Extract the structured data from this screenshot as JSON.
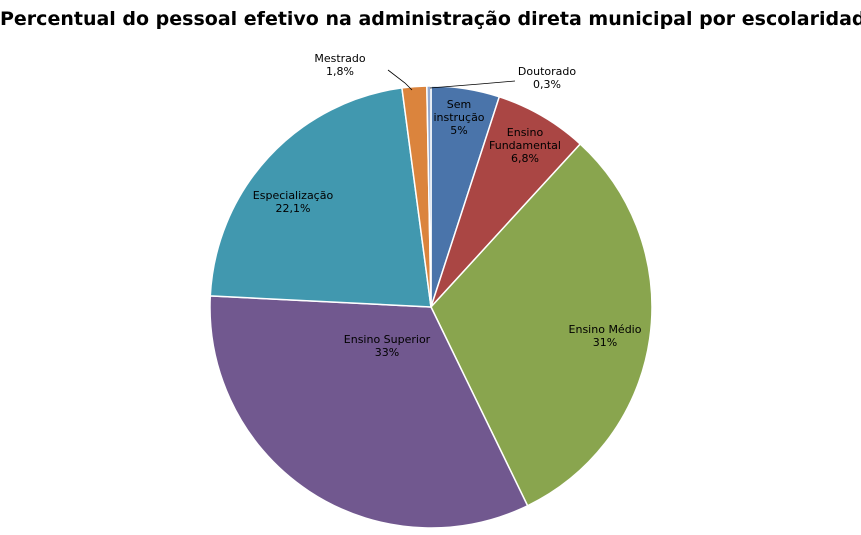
{
  "chart_data": {
    "type": "pie",
    "title": "Percentual do pessoal efetivo na administração direta municipal por escolaridade",
    "slices": [
      {
        "label": "Sem instrução",
        "value": 5,
        "display": "5%",
        "color": "#4A74AA"
      },
      {
        "label": "Ensino Fundamental",
        "value": 6.8,
        "display": "6,8%",
        "color": "#AA4644"
      },
      {
        "label": "Ensino Médio",
        "value": 31,
        "display": "31%",
        "color": "#89A54E"
      },
      {
        "label": "Ensino Superior",
        "value": 33,
        "display": "33%",
        "color": "#71588F"
      },
      {
        "label": "Especialização",
        "value": 22.1,
        "display": "22,1%",
        "color": "#4198AF"
      },
      {
        "label": "Mestrado",
        "value": 1.8,
        "display": "1,8%",
        "color": "#DB843D"
      },
      {
        "label": "Doutorado",
        "value": 0.3,
        "display": "0,3%",
        "color": "#93A9CF"
      }
    ],
    "legend": "none"
  }
}
